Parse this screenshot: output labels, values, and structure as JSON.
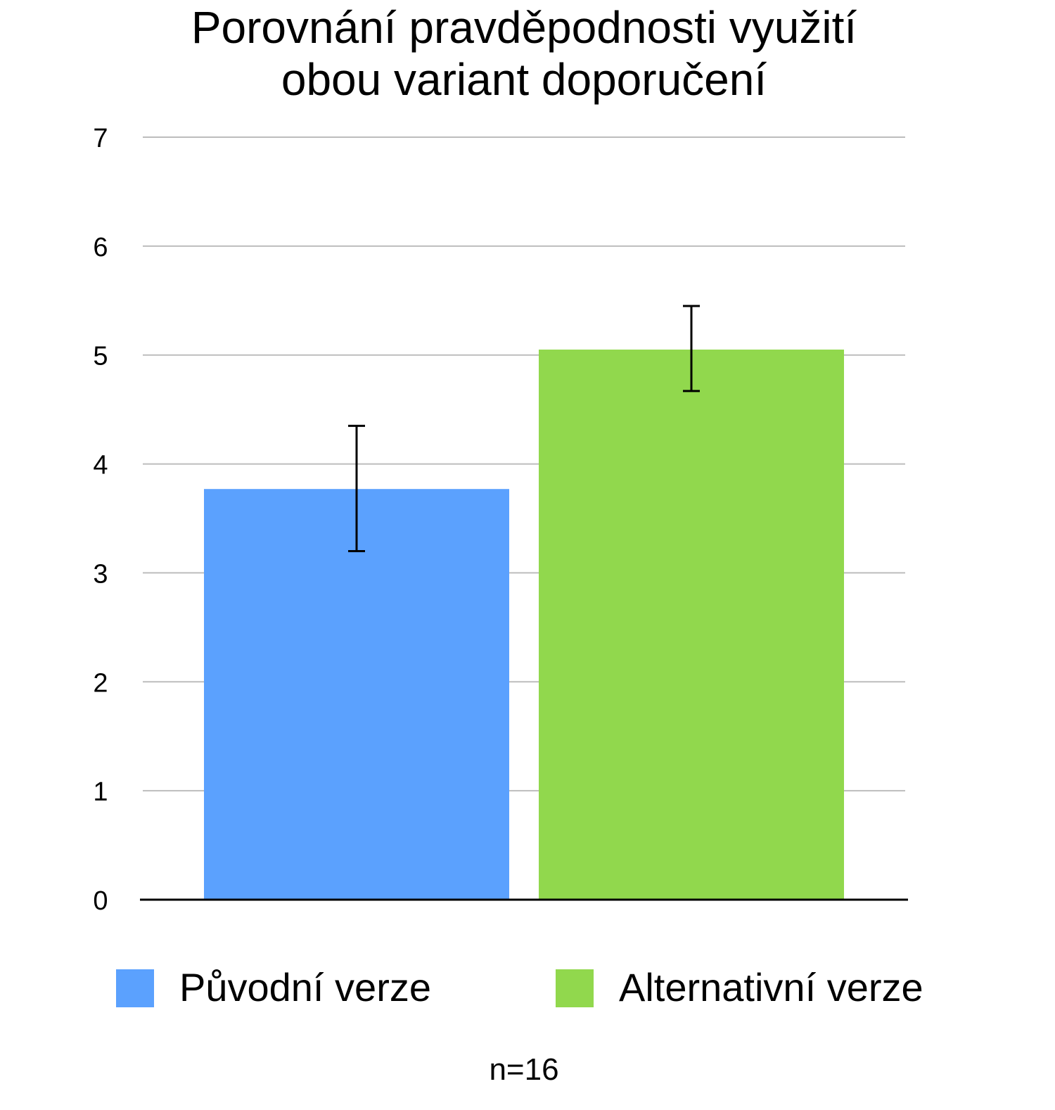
{
  "chart_data": {
    "type": "bar",
    "title_lines": [
      "Porovnání pravděpodnosti využití",
      "obou variant doporučení"
    ],
    "xlabel": "",
    "ylabel": "",
    "ylim": [
      0,
      7
    ],
    "yticks": [
      "0",
      "1",
      "2",
      "3",
      "4",
      "5",
      "6",
      "7"
    ],
    "grid": true,
    "legend_position": "bottom",
    "categories": [
      "Původní verze",
      "Alternativní verze"
    ],
    "series": [
      {
        "name": "Původní verze",
        "value": 3.77,
        "error_low": 3.2,
        "error_high": 4.35,
        "color": "#5BA1FE"
      },
      {
        "name": "Alternativní verze",
        "value": 5.05,
        "error_low": 4.67,
        "error_high": 5.45,
        "color": "#91D84D"
      }
    ],
    "footnote": "n=16"
  }
}
